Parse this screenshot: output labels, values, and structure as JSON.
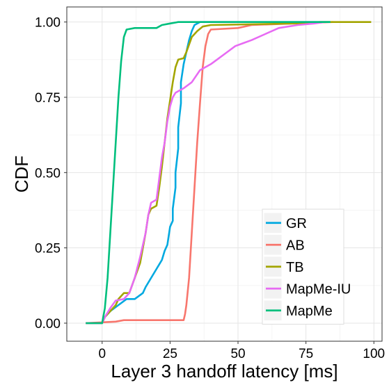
{
  "chart_data": {
    "type": "line",
    "title": "",
    "xlabel": "Layer 3 handoff latency [ms]",
    "ylabel": "CDF",
    "xlim": [
      -13,
      103
    ],
    "ylim": [
      -0.06,
      1.05
    ],
    "x_ticks": [
      0,
      25,
      50,
      75,
      100
    ],
    "x_tick_labels": [
      "0",
      "25",
      "50",
      "75",
      "100"
    ],
    "y_ticks": [
      0,
      0.25,
      0.5,
      0.75,
      1.0
    ],
    "y_tick_labels": [
      "0.00",
      "0.25",
      "0.50",
      "0.75",
      "1.00"
    ],
    "grid": true,
    "legend_position": "bottom-right",
    "series": [
      {
        "name": "GR",
        "color": "#00A9E0",
        "points": [
          [
            -6,
            0
          ],
          [
            0,
            0
          ],
          [
            1,
            0.02
          ],
          [
            3,
            0.04
          ],
          [
            6,
            0.06
          ],
          [
            9,
            0.08
          ],
          [
            12,
            0.08
          ],
          [
            15,
            0.1
          ],
          [
            16,
            0.12
          ],
          [
            18,
            0.15
          ],
          [
            20,
            0.18
          ],
          [
            22,
            0.21
          ],
          [
            23,
            0.24
          ],
          [
            24,
            0.26
          ],
          [
            25,
            0.32
          ],
          [
            26,
            0.34
          ],
          [
            26,
            0.38
          ],
          [
            27,
            0.45
          ],
          [
            27,
            0.5
          ],
          [
            28,
            0.58
          ],
          [
            28,
            0.65
          ],
          [
            29,
            0.73
          ],
          [
            29,
            0.8
          ],
          [
            30,
            0.86
          ],
          [
            31,
            0.9
          ],
          [
            32,
            0.94
          ],
          [
            33,
            0.97
          ],
          [
            34,
            0.99
          ],
          [
            36,
            1.0
          ],
          [
            50,
            1.0
          ],
          [
            84,
            1.0
          ]
        ]
      },
      {
        "name": "AB",
        "color": "#F8766D",
        "points": [
          [
            -6,
            0
          ],
          [
            5,
            0.005
          ],
          [
            8,
            0.01
          ],
          [
            30,
            0.01
          ],
          [
            30.5,
            0.03
          ],
          [
            31,
            0.06
          ],
          [
            32,
            0.15
          ],
          [
            33,
            0.3
          ],
          [
            34,
            0.45
          ],
          [
            35,
            0.6
          ],
          [
            36,
            0.73
          ],
          [
            37,
            0.85
          ],
          [
            38,
            0.92
          ],
          [
            39,
            0.96
          ],
          [
            40,
            0.975
          ],
          [
            50,
            0.98
          ],
          [
            55,
            0.99
          ],
          [
            70,
            0.995
          ],
          [
            85,
            1.0
          ]
        ]
      },
      {
        "name": "TB",
        "color": "#A3A500",
        "points": [
          [
            -6,
            0
          ],
          [
            0,
            0
          ],
          [
            1,
            0.02
          ],
          [
            3,
            0.04
          ],
          [
            5,
            0.06
          ],
          [
            6,
            0.08
          ],
          [
            8,
            0.1
          ],
          [
            10,
            0.1
          ],
          [
            12,
            0.15
          ],
          [
            14,
            0.2
          ],
          [
            16,
            0.3
          ],
          [
            17,
            0.36
          ],
          [
            18,
            0.38
          ],
          [
            20,
            0.39
          ],
          [
            21,
            0.45
          ],
          [
            22,
            0.52
          ],
          [
            23,
            0.6
          ],
          [
            24,
            0.68
          ],
          [
            25,
            0.74
          ],
          [
            26,
            0.8
          ],
          [
            27,
            0.85
          ],
          [
            28,
            0.875
          ],
          [
            30,
            0.88
          ],
          [
            31,
            0.9
          ],
          [
            33,
            0.95
          ],
          [
            35,
            0.97
          ],
          [
            37,
            0.985
          ],
          [
            40,
            0.99
          ],
          [
            70,
            0.995
          ],
          [
            75,
            0.995
          ],
          [
            80,
            1.0
          ],
          [
            99,
            1.0
          ]
        ]
      },
      {
        "name": "MapMe-IU",
        "color": "#E76BF3",
        "points": [
          [
            -6,
            0
          ],
          [
            0,
            0
          ],
          [
            1,
            0.02
          ],
          [
            3,
            0.05
          ],
          [
            5,
            0.075
          ],
          [
            8,
            0.08
          ],
          [
            10,
            0.1
          ],
          [
            12,
            0.15
          ],
          [
            14,
            0.22
          ],
          [
            16,
            0.3
          ],
          [
            17,
            0.36
          ],
          [
            18,
            0.4
          ],
          [
            20,
            0.41
          ],
          [
            21,
            0.48
          ],
          [
            22,
            0.55
          ],
          [
            23,
            0.6
          ],
          [
            24,
            0.67
          ],
          [
            25,
            0.72
          ],
          [
            26,
            0.75
          ],
          [
            27,
            0.765
          ],
          [
            28,
            0.77
          ],
          [
            30,
            0.78
          ],
          [
            33,
            0.8
          ],
          [
            36,
            0.84
          ],
          [
            40,
            0.86
          ],
          [
            43,
            0.88
          ],
          [
            46,
            0.9
          ],
          [
            49,
            0.92
          ],
          [
            52,
            0.93
          ],
          [
            55,
            0.94
          ],
          [
            60,
            0.96
          ],
          [
            65,
            0.98
          ],
          [
            72,
            0.99
          ],
          [
            78,
            0.995
          ],
          [
            82,
            1.0
          ]
        ]
      },
      {
        "name": "MapMe",
        "color": "#00BF7D",
        "points": [
          [
            -6,
            0
          ],
          [
            0,
            0
          ],
          [
            1,
            0.05
          ],
          [
            2,
            0.15
          ],
          [
            3,
            0.3
          ],
          [
            4,
            0.45
          ],
          [
            5,
            0.6
          ],
          [
            6,
            0.75
          ],
          [
            7,
            0.87
          ],
          [
            8,
            0.95
          ],
          [
            9,
            0.975
          ],
          [
            12,
            0.98
          ],
          [
            20,
            0.98
          ],
          [
            22,
            0.99
          ],
          [
            25,
            0.995
          ],
          [
            28,
            1.0
          ],
          [
            84,
            1.0
          ]
        ]
      }
    ]
  }
}
